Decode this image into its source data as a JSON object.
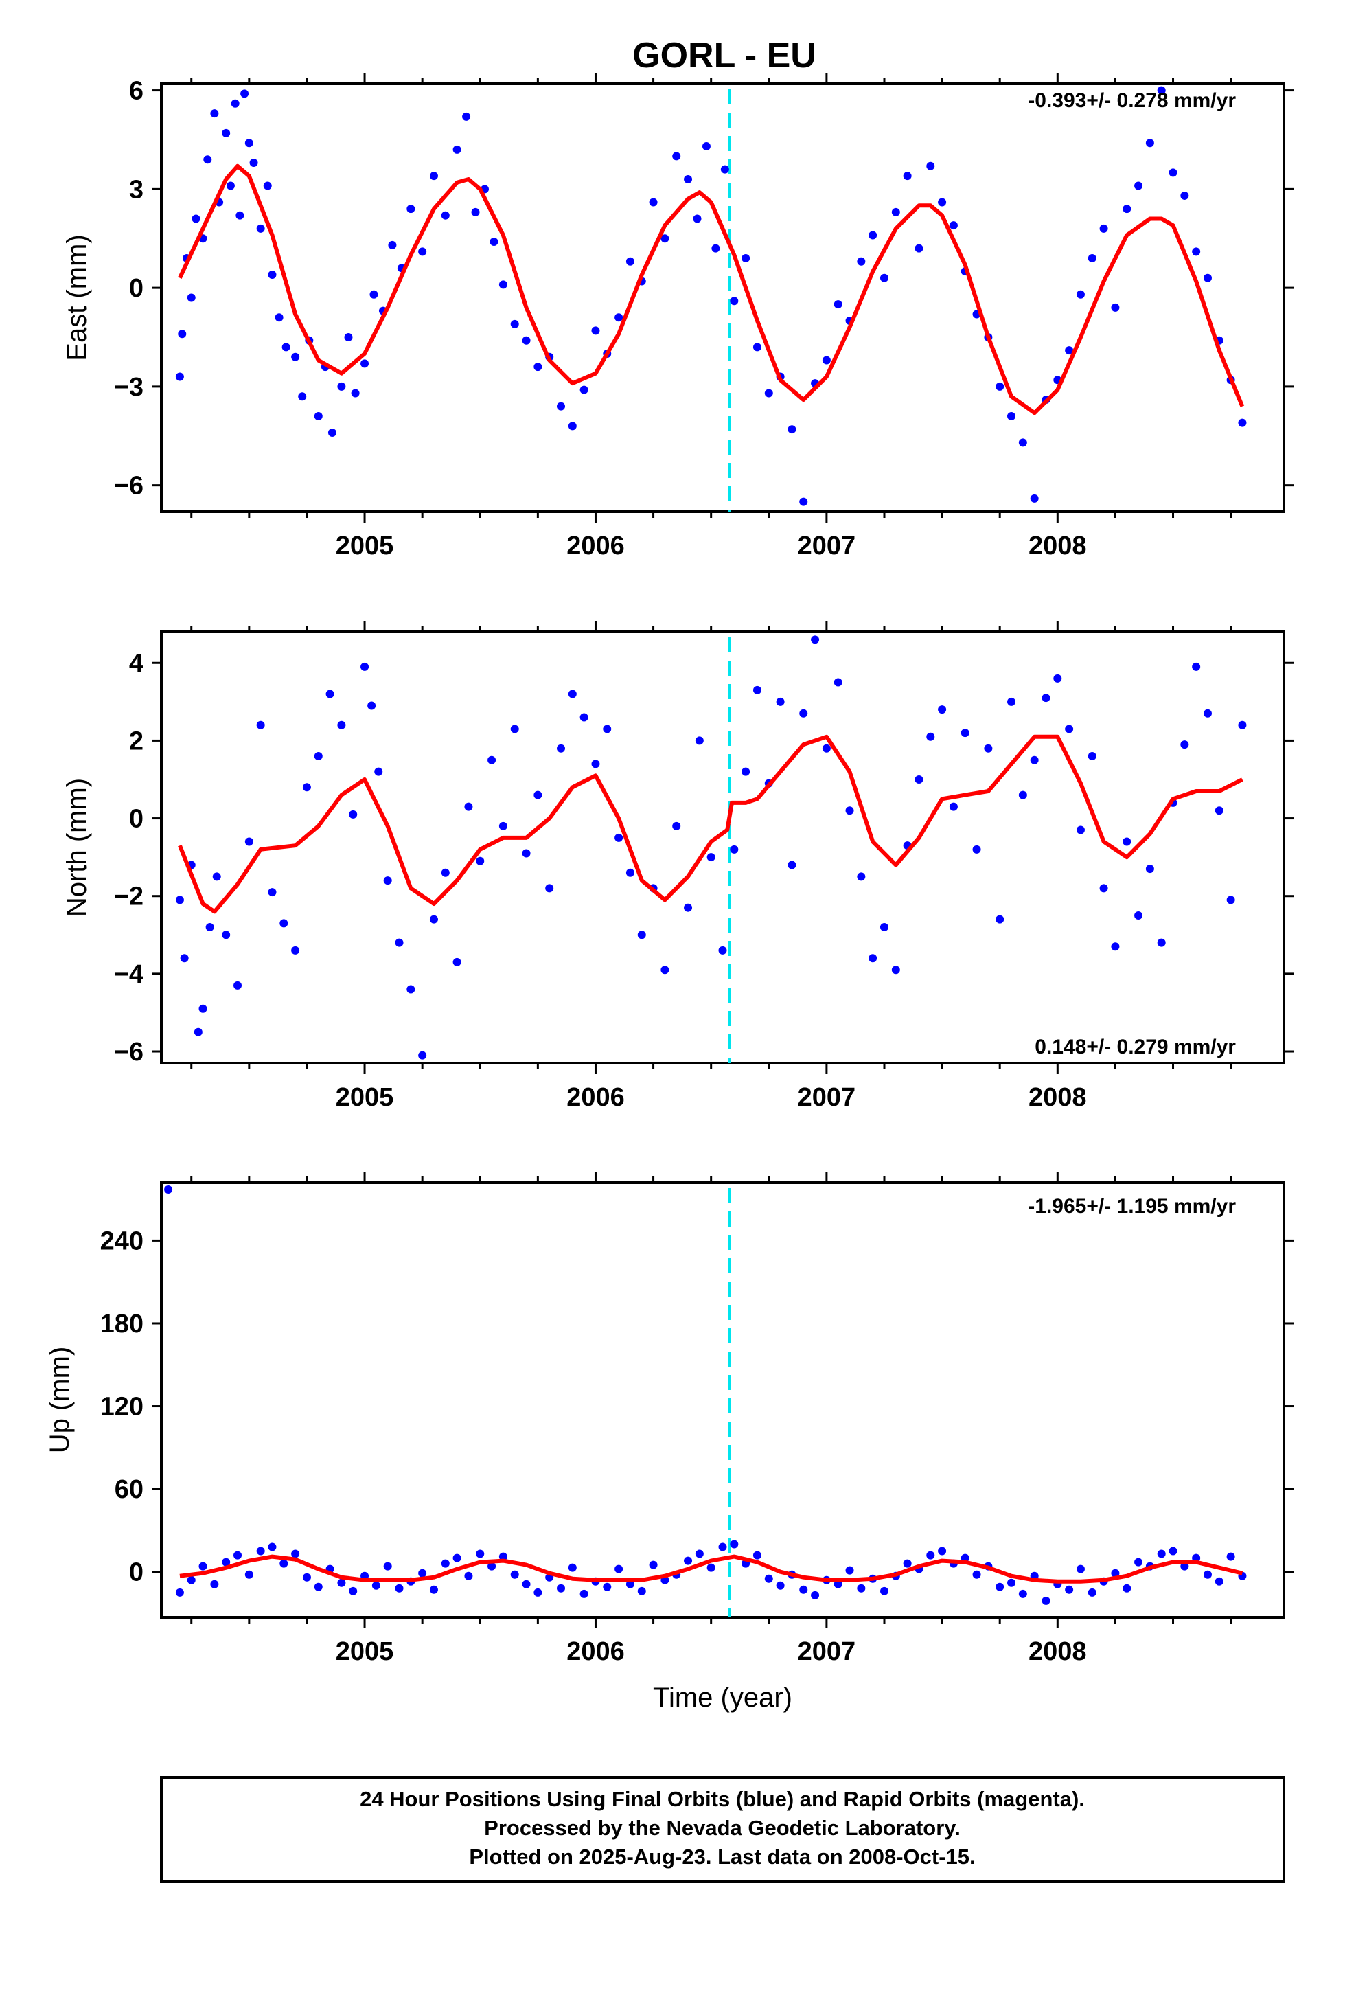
{
  "title": "GORL - EU",
  "colors": {
    "points_final": "#0000ff",
    "fit": "#ff0000",
    "event_line": "#00e5ee",
    "axis": "#000000"
  },
  "chart_data": [
    {
      "type": "scatter",
      "component": "east",
      "ylabel": "East (mm)",
      "xlabel": "",
      "xlim": [
        2004.12,
        2008.98
      ],
      "ylim": [
        -6.8,
        6.2
      ],
      "yticks": [
        -6,
        -3,
        0,
        3,
        6
      ],
      "xticks": [
        2005,
        2006,
        2007,
        2008
      ],
      "event_x": 2006.58,
      "rate_text": "-0.393+/- 0.278 mm/yr",
      "rate_position": "top-right",
      "series": [
        {
          "role": "fit",
          "x": [
            2004.2,
            2004.3,
            2004.4,
            2004.45,
            2004.5,
            2004.6,
            2004.7,
            2004.8,
            2004.9,
            2005.0,
            2005.1,
            2005.2,
            2005.3,
            2005.4,
            2005.45,
            2005.5,
            2005.6,
            2005.7,
            2005.8,
            2005.9,
            2006.0,
            2006.1,
            2006.2,
            2006.3,
            2006.4,
            2006.45,
            2006.5,
            2006.6,
            2006.7,
            2006.8,
            2006.9,
            2007.0,
            2007.1,
            2007.2,
            2007.3,
            2007.4,
            2007.45,
            2007.5,
            2007.6,
            2007.7,
            2007.8,
            2007.9,
            2008.0,
            2008.1,
            2008.2,
            2008.3,
            2008.4,
            2008.45,
            2008.5,
            2008.6,
            2008.7,
            2008.8
          ],
          "y": [
            0.3,
            1.8,
            3.3,
            3.7,
            3.4,
            1.6,
            -0.8,
            -2.2,
            -2.6,
            -2.0,
            -0.6,
            1.0,
            2.4,
            3.2,
            3.3,
            3.0,
            1.6,
            -0.6,
            -2.2,
            -2.9,
            -2.6,
            -1.4,
            0.4,
            1.9,
            2.7,
            2.9,
            2.6,
            1.0,
            -1.0,
            -2.8,
            -3.4,
            -2.7,
            -1.2,
            0.5,
            1.8,
            2.5,
            2.5,
            2.2,
            0.7,
            -1.5,
            -3.3,
            -3.8,
            -3.1,
            -1.5,
            0.2,
            1.6,
            2.1,
            2.1,
            1.9,
            0.2,
            -1.9,
            -3.6
          ]
        },
        {
          "role": "daily_positions",
          "x": [
            2004.2,
            2004.21,
            2004.23,
            2004.25,
            2004.27,
            2004.3,
            2004.32,
            2004.35,
            2004.37,
            2004.4,
            2004.42,
            2004.44,
            2004.46,
            2004.48,
            2004.5,
            2004.52,
            2004.55,
            2004.58,
            2004.6,
            2004.63,
            2004.66,
            2004.7,
            2004.73,
            2004.76,
            2004.8,
            2004.83,
            2004.86,
            2004.9,
            2004.93,
            2004.96,
            2005.0,
            2005.04,
            2005.08,
            2005.12,
            2005.16,
            2005.2,
            2005.25,
            2005.3,
            2005.35,
            2005.4,
            2005.44,
            2005.48,
            2005.52,
            2005.56,
            2005.6,
            2005.65,
            2005.7,
            2005.75,
            2005.8,
            2005.85,
            2005.9,
            2005.95,
            2006.0,
            2006.05,
            2006.1,
            2006.15,
            2006.2,
            2006.25,
            2006.3,
            2006.35,
            2006.4,
            2006.44,
            2006.48,
            2006.52,
            2006.56,
            2006.6,
            2006.65,
            2006.7,
            2006.75,
            2006.8,
            2006.85,
            2006.9,
            2006.95,
            2007.0,
            2007.05,
            2007.1,
            2007.15,
            2007.2,
            2007.25,
            2007.3,
            2007.35,
            2007.4,
            2007.45,
            2007.5,
            2007.55,
            2007.6,
            2007.65,
            2007.7,
            2007.75,
            2007.8,
            2007.85,
            2007.9,
            2007.95,
            2008.0,
            2008.05,
            2008.1,
            2008.15,
            2008.2,
            2008.25,
            2008.3,
            2008.35,
            2008.4,
            2008.45,
            2008.5,
            2008.55,
            2008.6,
            2008.65,
            2008.7,
            2008.75,
            2008.8
          ],
          "y": [
            -2.7,
            -1.4,
            0.9,
            -0.3,
            2.1,
            1.5,
            3.9,
            5.3,
            2.6,
            4.7,
            3.1,
            5.6,
            2.2,
            5.9,
            4.4,
            3.8,
            1.8,
            3.1,
            0.4,
            -0.9,
            -1.8,
            -2.1,
            -3.3,
            -1.6,
            -3.9,
            -2.4,
            -4.4,
            -3.0,
            -1.5,
            -3.2,
            -2.3,
            -0.2,
            -0.7,
            1.3,
            0.6,
            2.4,
            1.1,
            3.4,
            2.2,
            4.2,
            5.2,
            2.3,
            3.0,
            1.4,
            0.1,
            -1.1,
            -1.6,
            -2.4,
            -2.1,
            -3.6,
            -4.2,
            -3.1,
            -1.3,
            -2.0,
            -0.9,
            0.8,
            0.2,
            2.6,
            1.5,
            4.0,
            3.3,
            2.1,
            4.3,
            1.2,
            3.6,
            -0.4,
            0.9,
            -1.8,
            -3.2,
            -2.7,
            -4.3,
            -6.5,
            -2.9,
            -2.2,
            -0.5,
            -1.0,
            0.8,
            1.6,
            0.3,
            2.3,
            3.4,
            1.2,
            3.7,
            2.6,
            1.9,
            0.5,
            -0.8,
            -1.5,
            -3.0,
            -3.9,
            -4.7,
            -6.4,
            -3.4,
            -2.8,
            -1.9,
            -0.2,
            0.9,
            1.8,
            -0.6,
            2.4,
            3.1,
            4.4,
            6.0,
            3.5,
            2.8,
            1.1,
            0.3,
            -1.6,
            -2.8,
            -4.1
          ]
        }
      ]
    },
    {
      "type": "scatter",
      "component": "north",
      "ylabel": "North (mm)",
      "xlabel": "",
      "xlim": [
        2004.12,
        2008.98
      ],
      "ylim": [
        -6.3,
        4.8
      ],
      "yticks": [
        -6,
        -4,
        -2,
        0,
        2,
        4
      ],
      "xticks": [
        2005,
        2006,
        2007,
        2008
      ],
      "event_x": 2006.58,
      "rate_text": "0.148+/- 0.279 mm/yr",
      "rate_position": "bottom-right",
      "series": [
        {
          "role": "fit",
          "x": [
            2004.2,
            2004.3,
            2004.35,
            2004.45,
            2004.55,
            2004.7,
            2004.8,
            2004.9,
            2005.0,
            2005.1,
            2005.2,
            2005.3,
            2005.4,
            2005.5,
            2005.6,
            2005.7,
            2005.8,
            2005.9,
            2006.0,
            2006.1,
            2006.2,
            2006.3,
            2006.4,
            2006.5,
            2006.57,
            2006.59,
            2006.65,
            2006.7,
            2006.8,
            2006.9,
            2007.0,
            2007.1,
            2007.2,
            2007.3,
            2007.4,
            2007.5,
            2007.6,
            2007.7,
            2007.8,
            2007.9,
            2008.0,
            2008.1,
            2008.2,
            2008.3,
            2008.4,
            2008.5,
            2008.6,
            2008.7,
            2008.8
          ],
          "y": [
            -0.7,
            -2.2,
            -2.4,
            -1.7,
            -0.8,
            -0.7,
            -0.2,
            0.6,
            1.0,
            -0.2,
            -1.8,
            -2.2,
            -1.6,
            -0.8,
            -0.5,
            -0.5,
            0.0,
            0.8,
            1.1,
            0.0,
            -1.6,
            -2.1,
            -1.5,
            -0.6,
            -0.3,
            0.4,
            0.4,
            0.5,
            1.2,
            1.9,
            2.1,
            1.2,
            -0.6,
            -1.2,
            -0.5,
            0.5,
            0.6,
            0.7,
            1.4,
            2.1,
            2.1,
            0.9,
            -0.6,
            -1.0,
            -0.4,
            0.5,
            0.7,
            0.7,
            1.0
          ]
        },
        {
          "role": "daily_positions",
          "x": [
            2004.2,
            2004.22,
            2004.25,
            2004.28,
            2004.3,
            2004.33,
            2004.36,
            2004.4,
            2004.45,
            2004.5,
            2004.55,
            2004.6,
            2004.65,
            2004.7,
            2004.75,
            2004.8,
            2004.85,
            2004.9,
            2004.95,
            2005.0,
            2005.03,
            2005.06,
            2005.1,
            2005.15,
            2005.2,
            2005.25,
            2005.3,
            2005.35,
            2005.4,
            2005.45,
            2005.5,
            2005.55,
            2005.6,
            2005.65,
            2005.7,
            2005.75,
            2005.8,
            2005.85,
            2005.9,
            2005.95,
            2006.0,
            2006.05,
            2006.1,
            2006.15,
            2006.2,
            2006.25,
            2006.3,
            2006.35,
            2006.4,
            2006.45,
            2006.5,
            2006.55,
            2006.6,
            2006.65,
            2006.7,
            2006.75,
            2006.8,
            2006.85,
            2006.9,
            2006.95,
            2007.0,
            2007.05,
            2007.1,
            2007.15,
            2007.2,
            2007.25,
            2007.3,
            2007.35,
            2007.4,
            2007.45,
            2007.5,
            2007.55,
            2007.6,
            2007.65,
            2007.7,
            2007.75,
            2007.8,
            2007.85,
            2007.9,
            2007.95,
            2008.0,
            2008.05,
            2008.1,
            2008.15,
            2008.2,
            2008.25,
            2008.3,
            2008.35,
            2008.4,
            2008.45,
            2008.5,
            2008.55,
            2008.6,
            2008.65,
            2008.7,
            2008.75,
            2008.8
          ],
          "y": [
            -2.1,
            -3.6,
            -1.2,
            -5.5,
            -4.9,
            -2.8,
            -1.5,
            -3.0,
            -4.3,
            -0.6,
            2.4,
            -1.9,
            -2.7,
            -3.4,
            0.8,
            1.6,
            3.2,
            2.4,
            0.1,
            3.9,
            2.9,
            1.2,
            -1.6,
            -3.2,
            -4.4,
            -6.1,
            -2.6,
            -1.4,
            -3.7,
            0.3,
            -1.1,
            1.5,
            -0.2,
            2.3,
            -0.9,
            0.6,
            -1.8,
            1.8,
            3.2,
            2.6,
            1.4,
            2.3,
            -0.5,
            -1.4,
            -3.0,
            -1.8,
            -3.9,
            -0.2,
            -2.3,
            2.0,
            -1.0,
            -3.4,
            -0.8,
            1.2,
            3.3,
            0.9,
            3.0,
            -1.2,
            2.7,
            4.6,
            1.8,
            3.5,
            0.2,
            -1.5,
            -3.6,
            -2.8,
            -3.9,
            -0.7,
            1.0,
            2.1,
            2.8,
            0.3,
            2.2,
            -0.8,
            1.8,
            -2.6,
            3.0,
            0.6,
            1.5,
            3.1,
            3.6,
            2.3,
            -0.3,
            1.6,
            -1.8,
            -3.3,
            -0.6,
            -2.5,
            -1.3,
            -3.2,
            0.4,
            1.9,
            3.9,
            2.7,
            0.2,
            -2.1,
            2.4
          ]
        }
      ]
    },
    {
      "type": "scatter",
      "component": "up",
      "ylabel": "Up (mm)",
      "xlabel": "Time (year)",
      "xlim": [
        2004.12,
        2008.98
      ],
      "ylim": [
        -33,
        282
      ],
      "yticks": [
        0,
        60,
        120,
        180,
        240
      ],
      "xticks": [
        2005,
        2006,
        2007,
        2008
      ],
      "event_x": 2006.58,
      "rate_text": "-1.965+/- 1.195 mm/yr",
      "rate_position": "top-right",
      "series": [
        {
          "role": "fit",
          "x": [
            2004.2,
            2004.3,
            2004.4,
            2004.5,
            2004.6,
            2004.7,
            2004.8,
            2004.9,
            2005.0,
            2005.1,
            2005.2,
            2005.3,
            2005.4,
            2005.5,
            2005.6,
            2005.7,
            2005.8,
            2005.9,
            2006.0,
            2006.1,
            2006.2,
            2006.3,
            2006.4,
            2006.5,
            2006.6,
            2006.7,
            2006.8,
            2006.9,
            2007.0,
            2007.1,
            2007.2,
            2007.3,
            2007.4,
            2007.5,
            2007.6,
            2007.7,
            2007.8,
            2007.9,
            2008.0,
            2008.1,
            2008.2,
            2008.3,
            2008.4,
            2008.5,
            2008.6,
            2008.7,
            2008.8
          ],
          "y": [
            -3,
            -1,
            3,
            8,
            11,
            9,
            2,
            -4,
            -6,
            -6,
            -6,
            -4,
            2,
            7,
            8,
            5,
            -1,
            -5,
            -6,
            -6,
            -6,
            -3,
            2,
            8,
            11,
            7,
            0,
            -4,
            -6,
            -6,
            -5,
            -2,
            4,
            8,
            7,
            3,
            -3,
            -6,
            -7,
            -7,
            -6,
            -3,
            3,
            7,
            7,
            3,
            -1
          ]
        },
        {
          "role": "daily_positions",
          "x": [
            2004.15,
            2004.2,
            2004.25,
            2004.3,
            2004.35,
            2004.4,
            2004.45,
            2004.5,
            2004.55,
            2004.6,
            2004.65,
            2004.7,
            2004.75,
            2004.8,
            2004.85,
            2004.9,
            2004.95,
            2005.0,
            2005.05,
            2005.1,
            2005.15,
            2005.2,
            2005.25,
            2005.3,
            2005.35,
            2005.4,
            2005.45,
            2005.5,
            2005.55,
            2005.6,
            2005.65,
            2005.7,
            2005.75,
            2005.8,
            2005.85,
            2005.9,
            2005.95,
            2006.0,
            2006.05,
            2006.1,
            2006.15,
            2006.2,
            2006.25,
            2006.3,
            2006.35,
            2006.4,
            2006.45,
            2006.5,
            2006.55,
            2006.6,
            2006.65,
            2006.7,
            2006.75,
            2006.8,
            2006.85,
            2006.9,
            2006.95,
            2007.0,
            2007.05,
            2007.1,
            2007.15,
            2007.2,
            2007.25,
            2007.3,
            2007.35,
            2007.4,
            2007.45,
            2007.5,
            2007.55,
            2007.6,
            2007.65,
            2007.7,
            2007.75,
            2007.8,
            2007.85,
            2007.9,
            2007.95,
            2008.0,
            2008.05,
            2008.1,
            2008.15,
            2008.2,
            2008.25,
            2008.3,
            2008.35,
            2008.4,
            2008.45,
            2008.5,
            2008.55,
            2008.6,
            2008.65,
            2008.7,
            2008.75,
            2008.8
          ],
          "y": [
            277,
            -15,
            -6,
            4,
            -9,
            7,
            12,
            -2,
            15,
            18,
            6,
            13,
            -4,
            -11,
            2,
            -8,
            -14,
            -3,
            -10,
            4,
            -12,
            -7,
            -1,
            -13,
            6,
            10,
            -3,
            13,
            4,
            11,
            -2,
            -9,
            -15,
            -4,
            -12,
            3,
            -16,
            -7,
            -11,
            2,
            -9,
            -14,
            5,
            -6,
            -2,
            8,
            13,
            3,
            18,
            20,
            6,
            12,
            -5,
            -10,
            -2,
            -13,
            -17,
            -6,
            -9,
            1,
            -12,
            -5,
            -14,
            -3,
            6,
            2,
            12,
            15,
            6,
            10,
            -2,
            4,
            -11,
            -8,
            -16,
            -3,
            -21,
            -9,
            -13,
            2,
            -15,
            -7,
            -1,
            -12,
            7,
            4,
            13,
            15,
            4,
            10,
            -2,
            -7,
            11,
            -3
          ]
        }
      ]
    }
  ],
  "caption_lines": [
    "24 Hour Positions Using Final Orbits (blue) and Rapid Orbits (magenta).",
    "Processed by the Nevada Geodetic Laboratory.",
    "Plotted on 2025-Aug-23. Last data on 2008-Oct-15."
  ]
}
